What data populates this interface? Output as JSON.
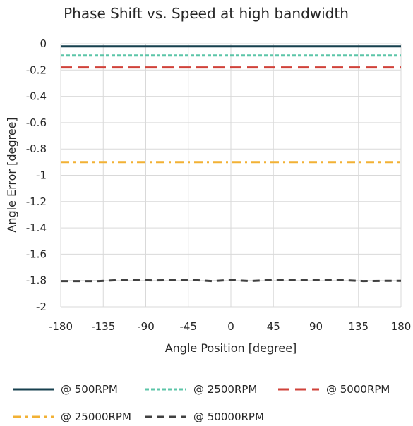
{
  "chart_data": {
    "type": "line",
    "title": "Phase Shift vs. Speed at high bandwidth",
    "xlabel": "Angle Position [degree]",
    "ylabel": "Angle Error [degree]",
    "xlim": [
      -180,
      180
    ],
    "ylim": [
      -2,
      0
    ],
    "x_ticks": [
      -180,
      -135,
      -90,
      -45,
      0,
      45,
      90,
      135,
      180
    ],
    "y_ticks": [
      0,
      -0.2,
      -0.4,
      -0.6,
      -0.8,
      -1,
      -1.2,
      -1.4,
      -1.6,
      -1.8,
      -2
    ],
    "x_tick_labels": [
      "-180",
      "-135",
      "-90",
      "-45",
      "0",
      "45",
      "90",
      "135",
      "180"
    ],
    "y_tick_labels": [
      "0",
      "-0.2",
      "-0.4",
      "-0.6",
      "-0.8",
      "-1",
      "-1.2",
      "-1.4",
      "-1.6",
      "-1.8",
      "-2"
    ],
    "grid": true,
    "legend_position": "bottom",
    "series": [
      {
        "name": "@ 500RPM",
        "color": "#17404f",
        "dash": "solid",
        "x": [
          -180,
          180
        ],
        "y": [
          -0.02,
          -0.02
        ]
      },
      {
        "name": "@ 2500RPM",
        "color": "#5cc5a8",
        "dash": "short-dash",
        "x": [
          -180,
          180
        ],
        "y": [
          -0.09,
          -0.09
        ]
      },
      {
        "name": "@ 5000RPM",
        "color": "#d0423a",
        "dash": "long-dash",
        "x": [
          -180,
          180
        ],
        "y": [
          -0.18,
          -0.18
        ]
      },
      {
        "name": "@ 25000RPM",
        "color": "#f2b134",
        "dash": "dash-dot",
        "x": [
          -180,
          180
        ],
        "y": [
          -0.9,
          -0.9
        ]
      },
      {
        "name": "@ 50000RPM",
        "color": "#404040",
        "dash": "dash",
        "x": [
          -180,
          -160,
          -140,
          -120,
          -100,
          -80,
          -60,
          -40,
          -20,
          0,
          20,
          40,
          60,
          80,
          100,
          120,
          140,
          160,
          180
        ],
        "y": [
          -1.805,
          -1.805,
          -1.805,
          -1.798,
          -1.797,
          -1.8,
          -1.798,
          -1.797,
          -1.805,
          -1.797,
          -1.805,
          -1.798,
          -1.797,
          -1.798,
          -1.797,
          -1.798,
          -1.805,
          -1.803,
          -1.803
        ]
      }
    ]
  }
}
